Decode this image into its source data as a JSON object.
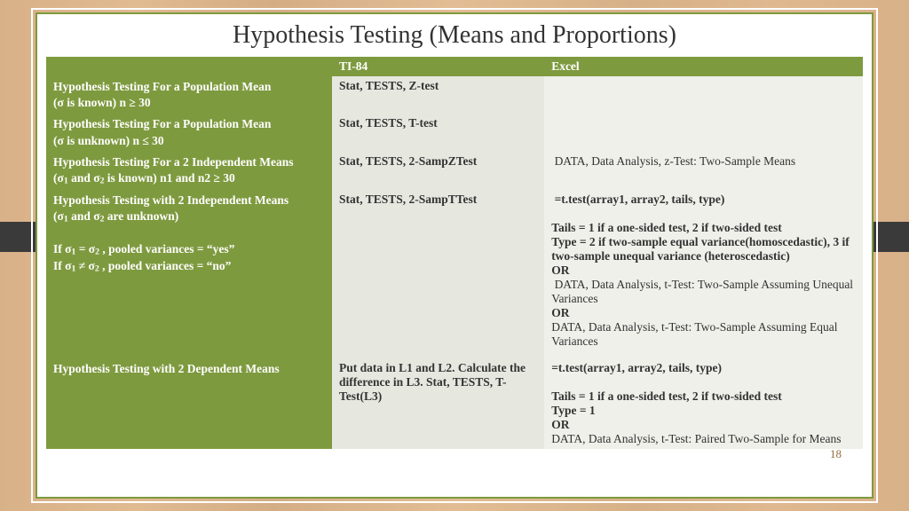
{
  "title": "Hypothesis Testing (Means and Proportions)",
  "page_number": "18",
  "colors": {
    "accent": "#7e9a3f",
    "cell_a": "#e6e8e0",
    "cell_b": "#eef0e9",
    "page_bg": "#ffffff",
    "wood_bg": "#d8b188",
    "tab": "#3a3a3a"
  },
  "columns": {
    "c0_width_pct": 35,
    "c1_width_pct": 26,
    "c2_width_pct": 39
  },
  "header": {
    "c0": "",
    "c1": "TI-84",
    "c2": "Excel"
  },
  "rows": [
    {
      "label": "Hypothesis Testing For a Population Mean",
      "label_sub": "(σ is known) n ≥ 30",
      "ti": "Stat, TESTS, Z-test",
      "excel": ""
    },
    {
      "label": "Hypothesis Testing For a Population Mean",
      "label_sub": "(σ is unknown) n ≤ 30",
      "ti": "Stat, TESTS, T-test",
      "excel": ""
    },
    {
      "label": "Hypothesis Testing For a 2 Independent Means",
      "label_sub_html": "(σ<sub>1</sub> and σ<sub>2</sub> is known) n1 and n2 ≥ 30",
      "ti": "Stat, TESTS, 2-SampZTest",
      "excel_html": "&nbsp;DATA, Data Analysis, z-Test: Two-Sample Means"
    },
    {
      "label": "Hypothesis Testing with 2 Independent Means",
      "label_sub_html": "(σ<sub>1</sub> and σ<sub>2</sub> are unknown)<br><br>If σ<sub>1</sub> = σ<sub>2</sub> , pooled variances = “yes”<br>If σ<sub>1</sub> ≠ σ<sub>2</sub> , pooled variances = “no”<br><br><br><br><br><br>",
      "ti": "Stat, TESTS, 2-SampTTest",
      "excel_html": "<span class='b line'>&nbsp;=t.test(array1, array2, tails, type)</span><span class='b line'>&nbsp;</span><span class='b line'>Tails = 1 if a one-sided test, 2 if two-sided test</span><span class='b line'>Type = 2 if two-sample equal variance(homoscedastic), 3 if two-sample unequal variance (heteroscedastic)</span><span class='b line'>OR</span><span class='line'>&nbsp;DATA, Data Analysis, t-Test: Two-Sample Assuming Unequal Variances</span><span class='b line'>OR</span><span class='line'>DATA, Data Analysis, t-Test: Two-Sample Assuming Equal Variances</span>"
    },
    {
      "label": "Hypothesis Testing with 2 Dependent Means",
      "label_sub": "",
      "ti": "Put data in L1 and L2. Calculate the difference in L3. Stat, TESTS, T-Test(L3)",
      "excel_html": "<span class='b line'>=t.test(array1, array2, tails, type)</span><span class='b line'>&nbsp;</span><span class='b line'>Tails = 1 if a one-sided test, 2 if two-sided test</span><span class='b line'>Type = 1</span><span class='b line'>OR</span><span class='line'>DATA, Data Analysis, t-Test: Paired Two-Sample for Means</span>"
    }
  ]
}
